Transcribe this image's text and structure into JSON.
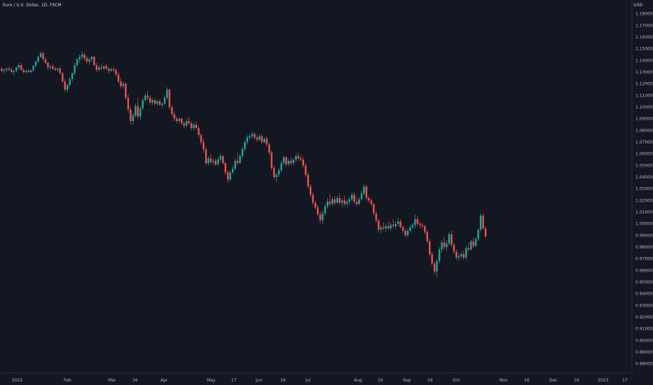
{
  "header": {
    "title": "Euro / U.S. Dollar, 1D, FXCM",
    "unit": "USD"
  },
  "colors": {
    "background": "#131722",
    "up": "#26a69a",
    "down": "#ef5350",
    "text": "#b2b5be",
    "axis_line": "#2a2e39"
  },
  "chart_data": {
    "type": "candlestick",
    "title": "Euro / U.S. Dollar, 1D, FXCM",
    "symbol": "EUR/USD",
    "interval": "1D",
    "source": "FXCM",
    "ylabel": "USD",
    "ylim": [
      0.8735,
      1.1885
    ],
    "y_ticks": [
      "1.18000",
      "1.17000",
      "1.16000",
      "1.15000",
      "1.14000",
      "1.13000",
      "1.12000",
      "1.11000",
      "1.10000",
      "1.09000",
      "1.08000",
      "1.07000",
      "1.06000",
      "1.05000",
      "1.04000",
      "1.03000",
      "1.02000",
      "1.01000",
      "1.00000",
      "0.99000",
      "0.98000",
      "0.97000",
      "0.96000",
      "0.95000",
      "0.94000",
      "0.93000",
      "0.92000",
      "0.91000",
      "0.90000",
      "0.89000",
      "0.88000"
    ],
    "x_ticks": [
      "2022",
      "Feb",
      "Mar",
      "16",
      "Apr",
      "May",
      "17",
      "Jun",
      "16",
      "Jul",
      "Aug",
      "16",
      "Sep",
      "16",
      "Oct",
      "Nov",
      "16",
      "Dec",
      "16",
      "2023",
      "17"
    ],
    "grid": false,
    "candles": [
      [
        1.1329,
        1.1345,
        1.13,
        1.131
      ],
      [
        1.131,
        1.133,
        1.129,
        1.132
      ],
      [
        1.132,
        1.134,
        1.13,
        1.133
      ],
      [
        1.133,
        1.135,
        1.131,
        1.132
      ],
      [
        1.132,
        1.134,
        1.129,
        1.13
      ],
      [
        1.13,
        1.132,
        1.127,
        1.131
      ],
      [
        1.131,
        1.1345,
        1.13,
        1.134
      ],
      [
        1.134,
        1.138,
        1.132,
        1.136
      ],
      [
        1.136,
        1.1375,
        1.131,
        1.132
      ],
      [
        1.132,
        1.1335,
        1.129,
        1.13
      ],
      [
        1.13,
        1.132,
        1.1285,
        1.131
      ],
      [
        1.131,
        1.133,
        1.129,
        1.13
      ],
      [
        1.13,
        1.132,
        1.129,
        1.1315
      ],
      [
        1.1315,
        1.136,
        1.13,
        1.1355
      ],
      [
        1.1355,
        1.14,
        1.134,
        1.139
      ],
      [
        1.139,
        1.144,
        1.138,
        1.143
      ],
      [
        1.143,
        1.148,
        1.142,
        1.146
      ],
      [
        1.146,
        1.1475,
        1.14,
        1.141
      ],
      [
        1.141,
        1.143,
        1.137,
        1.138
      ],
      [
        1.138,
        1.139,
        1.132,
        1.134
      ],
      [
        1.134,
        1.136,
        1.132,
        1.135
      ],
      [
        1.135,
        1.1365,
        1.132,
        1.133
      ],
      [
        1.133,
        1.1345,
        1.131,
        1.132
      ],
      [
        1.132,
        1.134,
        1.13,
        1.133
      ],
      [
        1.133,
        1.1345,
        1.128,
        1.129
      ],
      [
        1.129,
        1.13,
        1.121,
        1.122
      ],
      [
        1.122,
        1.124,
        1.113,
        1.115
      ],
      [
        1.115,
        1.12,
        1.113,
        1.119
      ],
      [
        1.119,
        1.126,
        1.117,
        1.124
      ],
      [
        1.124,
        1.13,
        1.122,
        1.129
      ],
      [
        1.129,
        1.138,
        1.127,
        1.136
      ],
      [
        1.136,
        1.142,
        1.134,
        1.141
      ],
      [
        1.141,
        1.145,
        1.138,
        1.143
      ],
      [
        1.143,
        1.148,
        1.14,
        1.145
      ],
      [
        1.145,
        1.147,
        1.14,
        1.142
      ],
      [
        1.142,
        1.144,
        1.137,
        1.139
      ],
      [
        1.139,
        1.142,
        1.136,
        1.141
      ],
      [
        1.141,
        1.144,
        1.139,
        1.143
      ],
      [
        1.143,
        1.144,
        1.135,
        1.136
      ],
      [
        1.136,
        1.138,
        1.13,
        1.132
      ],
      [
        1.132,
        1.136,
        1.13,
        1.134
      ],
      [
        1.134,
        1.137,
        1.131,
        1.133
      ],
      [
        1.133,
        1.136,
        1.131,
        1.135
      ],
      [
        1.135,
        1.137,
        1.132,
        1.133
      ],
      [
        1.133,
        1.134,
        1.129,
        1.131
      ],
      [
        1.131,
        1.134,
        1.13,
        1.1325
      ],
      [
        1.1325,
        1.1345,
        1.13,
        1.1315
      ],
      [
        1.1315,
        1.133,
        1.126,
        1.128
      ],
      [
        1.128,
        1.13,
        1.12,
        1.122
      ],
      [
        1.122,
        1.125,
        1.116,
        1.118
      ],
      [
        1.118,
        1.122,
        1.116,
        1.12
      ],
      [
        1.12,
        1.121,
        1.106,
        1.108
      ],
      [
        1.108,
        1.111,
        1.095,
        1.098
      ],
      [
        1.098,
        1.101,
        1.085,
        1.088
      ],
      [
        1.088,
        1.095,
        1.085,
        1.093
      ],
      [
        1.093,
        1.103,
        1.091,
        1.101
      ],
      [
        1.101,
        1.108,
        1.09,
        1.092
      ],
      [
        1.092,
        1.101,
        1.089,
        1.099
      ],
      [
        1.099,
        1.108,
        1.097,
        1.106
      ],
      [
        1.106,
        1.112,
        1.104,
        1.11
      ],
      [
        1.11,
        1.114,
        1.106,
        1.108
      ],
      [
        1.108,
        1.11,
        1.102,
        1.104
      ],
      [
        1.104,
        1.108,
        1.102,
        1.106
      ],
      [
        1.106,
        1.108,
        1.101,
        1.103
      ],
      [
        1.103,
        1.106,
        1.101,
        1.105
      ],
      [
        1.105,
        1.107,
        1.101,
        1.102
      ],
      [
        1.102,
        1.104,
        1.099,
        1.103
      ],
      [
        1.103,
        1.11,
        1.101,
        1.108
      ],
      [
        1.108,
        1.117,
        1.106,
        1.115
      ],
      [
        1.115,
        1.116,
        1.098,
        1.1
      ],
      [
        1.1,
        1.102,
        1.092,
        1.094
      ],
      [
        1.094,
        1.096,
        1.088,
        1.09
      ],
      [
        1.09,
        1.092,
        1.086,
        1.088
      ],
      [
        1.088,
        1.091,
        1.086,
        1.09
      ],
      [
        1.09,
        1.091,
        1.085,
        1.086
      ],
      [
        1.086,
        1.088,
        1.082,
        1.084
      ],
      [
        1.084,
        1.09,
        1.083,
        1.088
      ],
      [
        1.088,
        1.092,
        1.085,
        1.086
      ],
      [
        1.086,
        1.088,
        1.08,
        1.082
      ],
      [
        1.082,
        1.087,
        1.08,
        1.085
      ],
      [
        1.085,
        1.088,
        1.081,
        1.082
      ],
      [
        1.082,
        1.084,
        1.074,
        1.076
      ],
      [
        1.076,
        1.078,
        1.068,
        1.07
      ],
      [
        1.07,
        1.073,
        1.061,
        1.064
      ],
      [
        1.064,
        1.066,
        1.05,
        1.052
      ],
      [
        1.052,
        1.058,
        1.05,
        1.056
      ],
      [
        1.056,
        1.06,
        1.051,
        1.053
      ],
      [
        1.053,
        1.056,
        1.05,
        1.054
      ],
      [
        1.054,
        1.056,
        1.049,
        1.051
      ],
      [
        1.051,
        1.057,
        1.05,
        1.055
      ],
      [
        1.055,
        1.06,
        1.053,
        1.058
      ],
      [
        1.058,
        1.059,
        1.051,
        1.052
      ],
      [
        1.052,
        1.053,
        1.042,
        1.044
      ],
      [
        1.044,
        1.046,
        1.035,
        1.038
      ],
      [
        1.038,
        1.046,
        1.036,
        1.044
      ],
      [
        1.044,
        1.05,
        1.042,
        1.047
      ],
      [
        1.047,
        1.056,
        1.046,
        1.054
      ],
      [
        1.054,
        1.061,
        1.05,
        1.052
      ],
      [
        1.052,
        1.06,
        1.051,
        1.058
      ],
      [
        1.058,
        1.066,
        1.056,
        1.064
      ],
      [
        1.064,
        1.072,
        1.062,
        1.07
      ],
      [
        1.07,
        1.076,
        1.068,
        1.074
      ],
      [
        1.074,
        1.077,
        1.072,
        1.075
      ],
      [
        1.075,
        1.079,
        1.073,
        1.077
      ],
      [
        1.077,
        1.078,
        1.072,
        1.074
      ],
      [
        1.074,
        1.076,
        1.07,
        1.072
      ],
      [
        1.072,
        1.077,
        1.071,
        1.075
      ],
      [
        1.075,
        1.077,
        1.068,
        1.07
      ],
      [
        1.07,
        1.074,
        1.069,
        1.073
      ],
      [
        1.073,
        1.075,
        1.066,
        1.068
      ],
      [
        1.068,
        1.07,
        1.059,
        1.061
      ],
      [
        1.061,
        1.063,
        1.046,
        1.048
      ],
      [
        1.048,
        1.05,
        1.038,
        1.04
      ],
      [
        1.04,
        1.044,
        1.036,
        1.042
      ],
      [
        1.042,
        1.048,
        1.04,
        1.046
      ],
      [
        1.046,
        1.054,
        1.044,
        1.052
      ],
      [
        1.052,
        1.059,
        1.05,
        1.057
      ],
      [
        1.057,
        1.058,
        1.049,
        1.051
      ],
      [
        1.051,
        1.056,
        1.049,
        1.054
      ],
      [
        1.054,
        1.057,
        1.05,
        1.052
      ],
      [
        1.052,
        1.056,
        1.05,
        1.055
      ],
      [
        1.055,
        1.06,
        1.053,
        1.058
      ],
      [
        1.058,
        1.061,
        1.054,
        1.056
      ],
      [
        1.056,
        1.059,
        1.053,
        1.055
      ],
      [
        1.055,
        1.057,
        1.048,
        1.05
      ],
      [
        1.05,
        1.052,
        1.04,
        1.042
      ],
      [
        1.042,
        1.044,
        1.03,
        1.032
      ],
      [
        1.032,
        1.034,
        1.023,
        1.025
      ],
      [
        1.025,
        1.027,
        1.016,
        1.018
      ],
      [
        1.018,
        1.02,
        1.012,
        1.014
      ],
      [
        1.014,
        1.016,
        1.006,
        1.008
      ],
      [
        1.008,
        1.011,
        1.0,
        1.003
      ],
      [
        1.003,
        1.011,
        1.0,
        1.009
      ],
      [
        1.009,
        1.017,
        1.007,
        1.015
      ],
      [
        1.015,
        1.022,
        1.013,
        1.019
      ],
      [
        1.019,
        1.025,
        1.015,
        1.017
      ],
      [
        1.017,
        1.023,
        1.015,
        1.021
      ],
      [
        1.021,
        1.024,
        1.016,
        1.018
      ],
      [
        1.018,
        1.024,
        1.017,
        1.022
      ],
      [
        1.022,
        1.026,
        1.016,
        1.018
      ],
      [
        1.018,
        1.022,
        1.014,
        1.02
      ],
      [
        1.02,
        1.024,
        1.015,
        1.017
      ],
      [
        1.017,
        1.021,
        1.014,
        1.019
      ],
      [
        1.019,
        1.023,
        1.016,
        1.021
      ],
      [
        1.021,
        1.027,
        1.019,
        1.025
      ],
      [
        1.025,
        1.027,
        1.017,
        1.019
      ],
      [
        1.019,
        1.023,
        1.015,
        1.017
      ],
      [
        1.017,
        1.023,
        1.016,
        1.021
      ],
      [
        1.021,
        1.028,
        1.02,
        1.026
      ],
      [
        1.026,
        1.034,
        1.024,
        1.032
      ],
      [
        1.032,
        1.033,
        1.02,
        1.022
      ],
      [
        1.022,
        1.024,
        1.018,
        1.02
      ],
      [
        1.02,
        1.022,
        1.015,
        1.017
      ],
      [
        1.017,
        1.018,
        1.007,
        1.009
      ],
      [
        1.009,
        1.011,
        1.001,
        1.003
      ],
      [
        1.003,
        1.004,
        0.993,
        0.995
      ],
      [
        0.995,
        0.999,
        0.992,
        0.997
      ],
      [
        0.997,
        1.001,
        0.994,
        0.996
      ],
      [
        0.996,
        1.0,
        0.993,
        0.998
      ],
      [
        0.998,
        1.002,
        0.995,
        0.996
      ],
      [
        0.996,
        1.001,
        0.994,
        0.999
      ],
      [
        0.999,
        1.004,
        0.996,
        0.998
      ],
      [
        0.998,
        1.002,
        0.995,
        1.0
      ],
      [
        1.0,
        1.005,
        0.998,
        1.002
      ],
      [
        1.002,
        1.004,
        0.996,
        0.997
      ],
      [
        0.997,
        0.999,
        0.992,
        0.994
      ],
      [
        0.994,
        0.996,
        0.988,
        0.99
      ],
      [
        0.99,
        0.996,
        0.988,
        0.994
      ],
      [
        0.994,
        0.999,
        0.992,
        0.997
      ],
      [
        0.997,
        1.001,
        0.995,
        0.999
      ],
      [
        0.999,
        1.008,
        0.996,
        1.004
      ],
      [
        1.004,
        1.007,
        0.998,
        1.0
      ],
      [
        1.0,
        1.002,
        0.996,
        0.999
      ],
      [
        0.999,
        1.001,
        0.996,
        0.998
      ],
      [
        0.998,
        0.999,
        0.991,
        0.993
      ],
      [
        0.993,
        0.995,
        0.983,
        0.985
      ],
      [
        0.985,
        0.987,
        0.972,
        0.974
      ],
      [
        0.974,
        0.976,
        0.964,
        0.966
      ],
      [
        0.966,
        0.968,
        0.956,
        0.959
      ],
      [
        0.959,
        0.97,
        0.954,
        0.968
      ],
      [
        0.968,
        0.98,
        0.966,
        0.978
      ],
      [
        0.978,
        0.986,
        0.975,
        0.984
      ],
      [
        0.984,
        0.989,
        0.978,
        0.98
      ],
      [
        0.98,
        0.986,
        0.977,
        0.983
      ],
      [
        0.983,
        0.993,
        0.981,
        0.991
      ],
      [
        0.991,
        0.994,
        0.98,
        0.982
      ],
      [
        0.982,
        0.984,
        0.974,
        0.976
      ],
      [
        0.976,
        0.978,
        0.969,
        0.971
      ],
      [
        0.971,
        0.975,
        0.968,
        0.972
      ],
      [
        0.972,
        0.976,
        0.97,
        0.974
      ],
      [
        0.974,
        0.977,
        0.969,
        0.971
      ],
      [
        0.971,
        0.981,
        0.969,
        0.979
      ],
      [
        0.979,
        0.984,
        0.976,
        0.978
      ],
      [
        0.978,
        0.986,
        0.977,
        0.985
      ],
      [
        0.985,
        0.988,
        0.979,
        0.981
      ],
      [
        0.981,
        0.988,
        0.98,
        0.987
      ],
      [
        0.987,
        0.996,
        0.985,
        0.995
      ],
      [
        0.995,
        1.009,
        0.993,
        1.007
      ],
      [
        1.007,
        1.009,
        0.995,
        0.996
      ],
      [
        0.996,
        0.998,
        0.988,
        0.989
      ]
    ]
  }
}
